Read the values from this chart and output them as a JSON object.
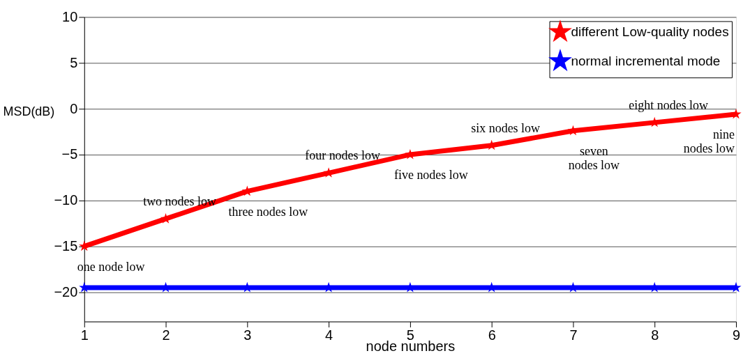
{
  "chart_data": {
    "type": "line",
    "xlabel": "node numbers",
    "ylabel": "MSD(dB)",
    "x": [
      1,
      2,
      3,
      4,
      5,
      6,
      7,
      8,
      9
    ],
    "series": [
      {
        "name": "different Low-quality nodes",
        "color": "#ff0000",
        "values": [
          -15,
          -12,
          -9,
          -7,
          -5,
          -4,
          -2.4,
          -1.5,
          -0.6
        ]
      },
      {
        "name": "normal incremental mode",
        "color": "#0000ff",
        "values": [
          -19.5,
          -19.5,
          -19.5,
          -19.5,
          -19.5,
          -19.5,
          -19.5,
          -19.5,
          -19.5
        ]
      }
    ],
    "annotations": [
      {
        "text": "one node low",
        "x": 1,
        "y": -15
      },
      {
        "text": "two nodes low",
        "x": 2,
        "y": -12
      },
      {
        "text": "three nodes low",
        "x": 3,
        "y": -9
      },
      {
        "text": "four nodes low",
        "x": 4,
        "y": -7
      },
      {
        "text": "five nodes low",
        "x": 5,
        "y": -5
      },
      {
        "text": "six nodes low",
        "x": 6,
        "y": -4
      },
      {
        "text": "seven\nnodes low",
        "x": 7,
        "y": -2.4
      },
      {
        "text": "eight nodes low",
        "x": 8,
        "y": -1.5
      },
      {
        "text": "nine\nnodes low",
        "x": 9,
        "y": -0.6
      }
    ],
    "xlim": [
      1,
      9
    ],
    "xticks": [
      1,
      2,
      3,
      4,
      5,
      6,
      7,
      8,
      9
    ],
    "ylim": [
      -23.2,
      10
    ],
    "yticks": [
      -20,
      -15,
      -10,
      -5,
      0,
      5,
      10
    ],
    "grid": "y",
    "legend": "top right",
    "marker": "star",
    "line_style": "solid"
  }
}
